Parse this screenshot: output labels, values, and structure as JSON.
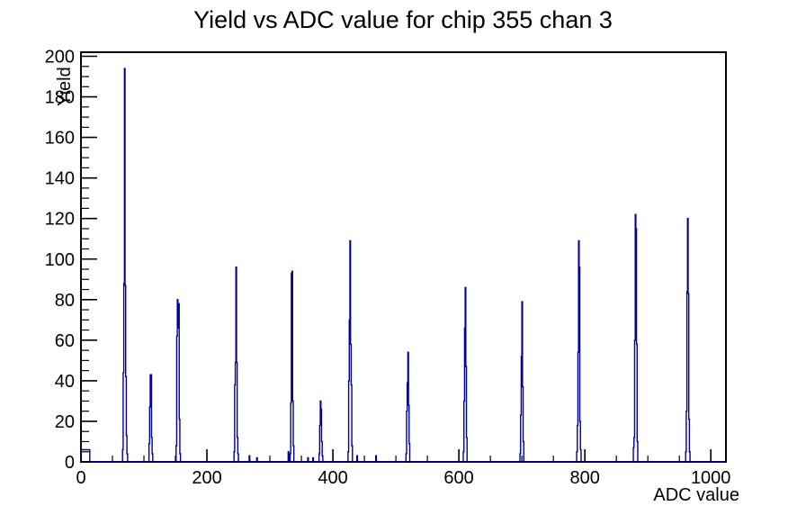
{
  "chart_data": {
    "type": "bar",
    "style": "root-histogram-step-line",
    "title": "Yield vs ADC value for chip 355 chan 3",
    "xlabel": "ADC value",
    "ylabel": "Yield",
    "xlim": [
      0,
      1024
    ],
    "ylim": [
      0,
      202
    ],
    "x_major_ticks": [
      0,
      200,
      400,
      600,
      800,
      1000
    ],
    "x_minor_step": 50,
    "y_major_ticks": [
      0,
      20,
      40,
      60,
      80,
      100,
      120,
      140,
      160,
      180,
      200
    ],
    "y_minor_step": 5,
    "grid": false,
    "legend": "none",
    "line_color": "#000099",
    "frame_color": "#000000",
    "background_color": "#ffffff",
    "baseline_run": {
      "from": 0,
      "to": 13,
      "value": 6
    },
    "bins": {
      "66": 6,
      "67": 44,
      "68": 88,
      "69": 194,
      "70": 87,
      "71": 42,
      "72": 13,
      "73": 4,
      "108": 9,
      "109": 27,
      "110": 43,
      "111": 43,
      "112": 12,
      "113": 4,
      "151": 8,
      "152": 62,
      "153": 80,
      "154": 66,
      "155": 78,
      "156": 21,
      "157": 4,
      "243": 5,
      "244": 38,
      "245": 49,
      "246": 96,
      "247": 49,
      "248": 12,
      "249": 4,
      "267": 3,
      "279": 2,
      "329": 5,
      "332": 4,
      "333": 29,
      "334": 93,
      "335": 94,
      "336": 30,
      "337": 8,
      "360": 2,
      "368": 2,
      "378": 4,
      "379": 18,
      "380": 30,
      "381": 26,
      "382": 10,
      "383": 3,
      "424": 5,
      "425": 40,
      "426": 70,
      "427": 109,
      "428": 58,
      "429": 38,
      "430": 8,
      "438": 3,
      "468": 3,
      "516": 4,
      "517": 25,
      "518": 39,
      "519": 54,
      "520": 28,
      "521": 9,
      "607": 5,
      "608": 30,
      "609": 66,
      "610": 86,
      "611": 47,
      "612": 12,
      "697": 4,
      "698": 23,
      "699": 52,
      "700": 79,
      "701": 37,
      "702": 10,
      "787": 5,
      "788": 18,
      "789": 54,
      "790": 109,
      "791": 96,
      "792": 20,
      "793": 6,
      "877": 7,
      "878": 12,
      "879": 60,
      "880": 122,
      "881": 115,
      "882": 58,
      "883": 10,
      "960": 5,
      "961": 25,
      "962": 84,
      "963": 120,
      "964": 83,
      "965": 21,
      "966": 5
    },
    "peaks": [
      {
        "adc": 69,
        "yield": 194
      },
      {
        "adc": 110,
        "yield": 43
      },
      {
        "adc": 153,
        "yield": 80
      },
      {
        "adc": 246,
        "yield": 96
      },
      {
        "adc": 335,
        "yield": 94
      },
      {
        "adc": 380,
        "yield": 30
      },
      {
        "adc": 427,
        "yield": 109
      },
      {
        "adc": 519,
        "yield": 54
      },
      {
        "adc": 610,
        "yield": 86
      },
      {
        "adc": 700,
        "yield": 79
      },
      {
        "adc": 790,
        "yield": 109
      },
      {
        "adc": 880,
        "yield": 122
      },
      {
        "adc": 963,
        "yield": 120
      }
    ]
  }
}
